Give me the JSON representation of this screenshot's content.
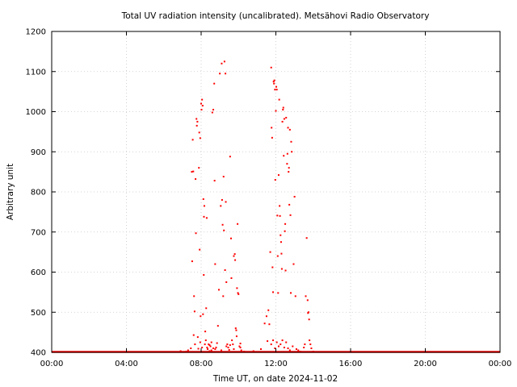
{
  "chart_data": {
    "type": "scatter",
    "title": "Total UV radiation intensity (uncalibrated). Metsähovi Radio Observatory",
    "xlabel": "Time UT, on date 2024-11-02",
    "ylabel": "Arbitrary unit",
    "xlim": [
      0,
      24
    ],
    "ylim": [
      400,
      1200
    ],
    "x_ticks": [
      0,
      4,
      8,
      12,
      16,
      20,
      24
    ],
    "x_tick_labels": [
      "00:00",
      "04:00",
      "08:00",
      "12:00",
      "16:00",
      "20:00",
      "00:00"
    ],
    "y_ticks": [
      400,
      500,
      600,
      700,
      800,
      900,
      1000,
      1100,
      1200
    ],
    "y_tick_labels": [
      "400",
      "500",
      "600",
      "700",
      "800",
      "900",
      "1000",
      "1100",
      "1200"
    ],
    "grid": true,
    "legend": "none",
    "marker_color": "#ff0000",
    "baseline": {
      "value": 400,
      "from": 0,
      "to": 24
    },
    "series": [
      {
        "values": [
          [
            6.9,
            403
          ],
          [
            7.2,
            402
          ],
          [
            7.3,
            405
          ],
          [
            7.45,
            410
          ],
          [
            7.5,
            850
          ],
          [
            7.52,
            627
          ],
          [
            7.55,
            930
          ],
          [
            7.58,
            851
          ],
          [
            7.6,
            443
          ],
          [
            7.62,
            540
          ],
          [
            7.65,
            502
          ],
          [
            7.67,
            420
          ],
          [
            7.7,
            832
          ],
          [
            7.72,
            697
          ],
          [
            7.75,
            982
          ],
          [
            7.77,
            965
          ],
          [
            7.8,
            975
          ],
          [
            7.82,
            438
          ],
          [
            7.85,
            409
          ],
          [
            7.88,
            860
          ],
          [
            7.9,
            948
          ],
          [
            7.92,
            656
          ],
          [
            7.95,
            934
          ],
          [
            7.97,
            490
          ],
          [
            8.0,
            1020
          ],
          [
            8.02,
            1005
          ],
          [
            8.05,
            1030
          ],
          [
            8.08,
            1015
          ],
          [
            8.1,
            495
          ],
          [
            8.12,
            782
          ],
          [
            8.14,
            593
          ],
          [
            8.15,
            738
          ],
          [
            8.17,
            765
          ],
          [
            8.2,
            420
          ],
          [
            8.22,
            452
          ],
          [
            8.25,
            430
          ],
          [
            8.27,
            510
          ],
          [
            8.3,
            735
          ],
          [
            8.32,
            412
          ],
          [
            8.35,
            408
          ],
          [
            8.4,
            420
          ],
          [
            8.45,
            403
          ],
          [
            8.5,
            415
          ],
          [
            8.55,
            405
          ],
          [
            8.6,
            998
          ],
          [
            8.65,
            1005
          ],
          [
            8.7,
            1070
          ],
          [
            8.72,
            828
          ],
          [
            8.75,
            620
          ],
          [
            8.8,
            412
          ],
          [
            8.85,
            423
          ],
          [
            8.9,
            466
          ],
          [
            8.95,
            556
          ],
          [
            9.0,
            1095
          ],
          [
            9.05,
            765
          ],
          [
            9.08,
            405
          ],
          [
            9.1,
            1120
          ],
          [
            9.12,
            780
          ],
          [
            9.15,
            718
          ],
          [
            9.18,
            540
          ],
          [
            9.2,
            838
          ],
          [
            9.22,
            704
          ],
          [
            9.25,
            1125
          ],
          [
            9.28,
            605
          ],
          [
            9.3,
            1095
          ],
          [
            9.32,
            775
          ],
          [
            9.35,
            575
          ],
          [
            9.4,
            420
          ],
          [
            9.45,
            412
          ],
          [
            9.5,
            406
          ],
          [
            9.55,
            888
          ],
          [
            9.6,
            684
          ],
          [
            9.62,
            585
          ],
          [
            9.65,
            430
          ],
          [
            9.7,
            420
          ],
          [
            9.75,
            640
          ],
          [
            9.8,
            645
          ],
          [
            9.82,
            630
          ],
          [
            9.85,
            460
          ],
          [
            9.88,
            455
          ],
          [
            9.9,
            440
          ],
          [
            9.92,
            560
          ],
          [
            9.95,
            720
          ],
          [
            9.97,
            548
          ],
          [
            10.0,
            545
          ],
          [
            10.05,
            415
          ],
          [
            10.1,
            412
          ],
          [
            10.15,
            405
          ],
          [
            10.3,
            402
          ],
          [
            10.8,
            403
          ],
          [
            11.2,
            408
          ],
          [
            11.4,
            472
          ],
          [
            11.5,
            490
          ],
          [
            11.55,
            428
          ],
          [
            11.6,
            505
          ],
          [
            11.65,
            470
          ],
          [
            11.7,
            650
          ],
          [
            11.75,
            1110
          ],
          [
            11.77,
            960
          ],
          [
            11.8,
            935
          ],
          [
            11.82,
            612
          ],
          [
            11.85,
            550
          ],
          [
            11.88,
            1075
          ],
          [
            11.9,
            1070
          ],
          [
            11.92,
            1078
          ],
          [
            11.95,
            1055
          ],
          [
            11.97,
            830
          ],
          [
            12.0,
            1002
          ],
          [
            12.02,
            1062
          ],
          [
            12.05,
            1055
          ],
          [
            12.08,
            741
          ],
          [
            12.1,
            640
          ],
          [
            12.12,
            548
          ],
          [
            12.15,
            842
          ],
          [
            12.18,
            1030
          ],
          [
            12.2,
            765
          ],
          [
            12.22,
            740
          ],
          [
            12.25,
            692
          ],
          [
            12.28,
            675
          ],
          [
            12.3,
            646
          ],
          [
            12.32,
            608
          ],
          [
            12.35,
            975
          ],
          [
            12.38,
            1005
          ],
          [
            12.4,
            1010
          ],
          [
            12.42,
            890
          ],
          [
            12.45,
            982
          ],
          [
            12.48,
            702
          ],
          [
            12.5,
            720
          ],
          [
            12.52,
            604
          ],
          [
            12.55,
            985
          ],
          [
            12.6,
            870
          ],
          [
            12.62,
            895
          ],
          [
            12.65,
            960
          ],
          [
            12.68,
            850
          ],
          [
            12.7,
            860
          ],
          [
            12.72,
            768
          ],
          [
            12.75,
            955
          ],
          [
            12.78,
            742
          ],
          [
            12.8,
            548
          ],
          [
            12.82,
            925
          ],
          [
            12.85,
            900
          ],
          [
            12.9,
            415
          ],
          [
            12.95,
            620
          ],
          [
            13.0,
            788
          ],
          [
            13.05,
            540
          ],
          [
            13.1,
            408
          ],
          [
            13.2,
            405
          ],
          [
            13.3,
            402
          ],
          [
            13.5,
            412
          ],
          [
            13.55,
            420
          ],
          [
            13.6,
            540
          ],
          [
            13.65,
            685
          ],
          [
            13.7,
            530
          ],
          [
            13.72,
            498
          ],
          [
            13.75,
            500
          ],
          [
            13.78,
            482
          ],
          [
            13.8,
            430
          ],
          [
            13.85,
            420
          ],
          [
            13.9,
            410
          ],
          [
            14.0,
            402
          ],
          [
            11.75,
            420
          ],
          [
            11.85,
            430
          ],
          [
            11.95,
            410
          ],
          [
            12.05,
            425
          ],
          [
            12.15,
            415
          ],
          [
            12.25,
            420
          ],
          [
            12.35,
            430
          ],
          [
            12.45,
            412
          ],
          [
            12.55,
            425
          ],
          [
            12.65,
            410
          ],
          [
            12.75,
            405
          ],
          [
            8.45,
            418
          ],
          [
            8.55,
            425
          ],
          [
            8.65,
            410
          ],
          [
            8.75,
            408
          ],
          [
            9.35,
            415
          ],
          [
            9.55,
            418
          ],
          [
            9.75,
            408
          ],
          [
            10.1,
            422
          ],
          [
            7.95,
            425
          ],
          [
            8.05,
            412
          ]
        ]
      }
    ]
  }
}
